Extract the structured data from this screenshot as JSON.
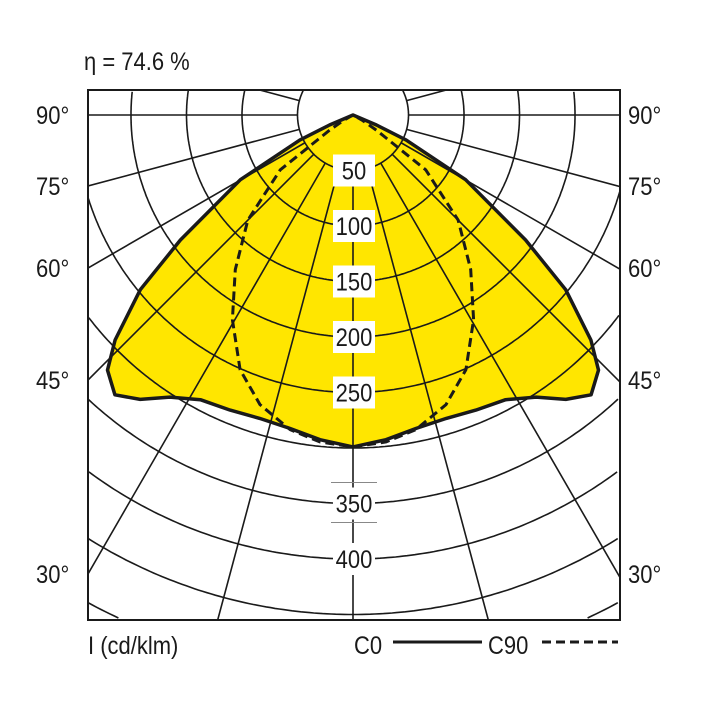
{
  "chart_data": {
    "type": "polar",
    "title": "η = 74.6 %",
    "unit_label": "I (cd/klm)",
    "radial_ticks": [
      50,
      100,
      150,
      200,
      250,
      350,
      400
    ],
    "radial_grid": [
      50,
      100,
      150,
      200,
      250,
      300,
      350,
      400,
      450,
      500,
      550
    ],
    "angle_grid_step_deg": 15,
    "angle_labels": [
      "90°",
      "75°",
      "60°",
      "45°",
      "30°"
    ],
    "angle_label_values": [
      90,
      75,
      60,
      45,
      30
    ],
    "grid": true,
    "fill_color": "#ffe600",
    "series": [
      {
        "name": "C0",
        "style": "solid",
        "filled": true,
        "gamma": [
          0,
          5.8,
          11.4,
          17.1,
          22.6,
          28.2,
          33,
          36.8,
          40.4,
          43.9,
          46.6,
          50.6,
          54.1,
          60.1,
          64.7,
          67,
          90
        ],
        "intensity": [
          299,
          294,
          288,
          286,
          288,
          291,
          303,
          320,
          331,
          319,
          295,
          248,
          192,
          117,
          53,
          23,
          0
        ]
      },
      {
        "name": "C90",
        "style": "dashed",
        "filled": false,
        "gamma": [
          0,
          5.8,
          11.3,
          17.8,
          23.9,
          30.5,
          37.3,
          45,
          53,
          57,
          60,
          90
        ],
        "intensity": [
          299,
          296,
          289,
          274,
          251,
          214,
          175,
          134,
          82,
          25,
          10,
          0
        ]
      }
    ],
    "legend": {
      "c0": "C0",
      "c90": "C90",
      "placement": "bottom-right"
    }
  }
}
